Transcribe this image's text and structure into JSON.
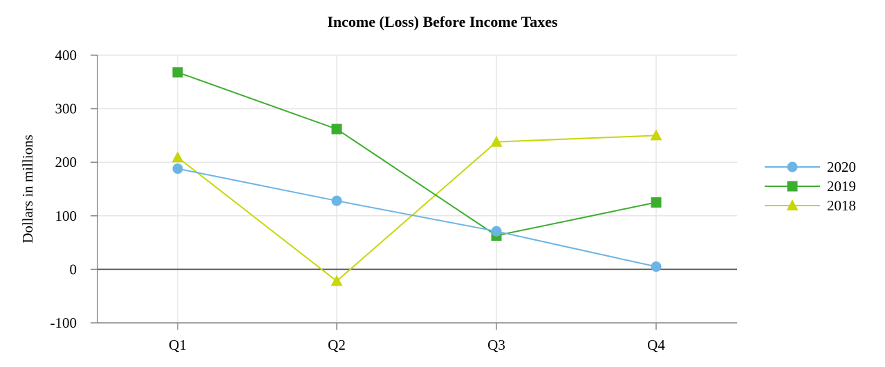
{
  "chart_data": {
    "type": "line",
    "title": "Income (Loss) Before Income Taxes",
    "xlabel": "",
    "ylabel": "Dollars in millions",
    "categories": [
      "Q1",
      "Q2",
      "Q3",
      "Q4"
    ],
    "ylim": [
      -100,
      400
    ],
    "yticks": [
      -100,
      0,
      100,
      200,
      300,
      400
    ],
    "grid": true,
    "legend_position": "right",
    "series": [
      {
        "name": "2020",
        "marker": "circle",
        "color": "#6cb4e4",
        "values": [
          188,
          128,
          71,
          5
        ]
      },
      {
        "name": "2019",
        "marker": "square",
        "color": "#3cae2e",
        "values": [
          368,
          262,
          63,
          125
        ]
      },
      {
        "name": "2018",
        "marker": "triangle",
        "color": "#c8d60a",
        "values": [
          209,
          -22,
          238,
          250
        ]
      }
    ]
  }
}
